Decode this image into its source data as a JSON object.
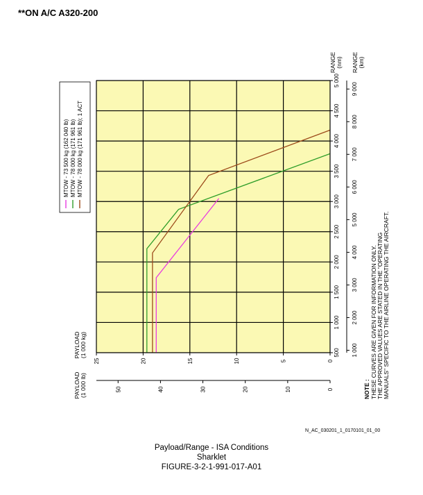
{
  "page": {
    "title": "**ON A/C A320-200",
    "doc_ref": "N_AC_030201_1_0170101_01_00",
    "caption_1": "Payload/Range - ISA Conditions",
    "caption_2": "Sharklet",
    "caption_3": "FIGURE-3-2-1-991-017-A01"
  },
  "chart_data": {
    "type": "line",
    "orientation": "rotated 90° counter-clockwise (range increases upward, payload increases leftward)",
    "plot_background": "#fbf9b4",
    "grid": true,
    "x_axis": {
      "label_nm": "RANGE",
      "unit_nm": "(nm)",
      "label_km": "RANGE",
      "unit_km": "(km)",
      "ylim_nm": [
        500,
        5000
      ],
      "ticks_nm": [
        "500",
        "1 000",
        "1 500",
        "2 000",
        "2 500",
        "3 000",
        "3 500",
        "4 000",
        "4 500",
        "5 000"
      ],
      "ticks_km": [
        "1 000",
        "2 000",
        "3 000",
        "4 000",
        "5 000",
        "6 000",
        "7 000",
        "8 000",
        "9 000"
      ]
    },
    "y_axis": {
      "label": "PAYLOAD",
      "unit_kg": "(1 000 kg)",
      "unit_lb": "(1 000 lb)",
      "range_kg": [
        0,
        25
      ],
      "ticks_kg": [
        "0",
        "5",
        "10",
        "15",
        "20",
        "25"
      ],
      "ticks_lb": [
        "0",
        "10",
        "20",
        "30",
        "40",
        "50"
      ]
    },
    "legend_placement": "top-left",
    "series": [
      {
        "name": "MTOW - 73 500 kg (162 040 lb)",
        "color": "#e83ae0",
        "points": [
          {
            "range_nm": 500,
            "payload_kg": 18.6
          },
          {
            "range_nm": 1740,
            "payload_kg": 18.6
          },
          {
            "range_nm": 3050,
            "payload_kg": 11.9
          }
        ]
      },
      {
        "name": "MTOW - 78 000 kg (171 961 lb)",
        "color": "#2f9e2a",
        "points": [
          {
            "range_nm": 500,
            "payload_kg": 19.6
          },
          {
            "range_nm": 2220,
            "payload_kg": 19.6
          },
          {
            "range_nm": 2870,
            "payload_kg": 16.2
          },
          {
            "range_nm": 3790,
            "payload_kg": 0
          }
        ]
      },
      {
        "name": "MTOW - 78 000 kg (171 961 lb); 1 ACT",
        "color": "#9c4a1a",
        "points": [
          {
            "range_nm": 500,
            "payload_kg": 19.0
          },
          {
            "range_nm": 2150,
            "payload_kg": 19.0
          },
          {
            "range_nm": 3430,
            "payload_kg": 13.0
          },
          {
            "range_nm": 4180,
            "payload_kg": 0
          }
        ]
      }
    ]
  },
  "note": {
    "title": "NOTE :",
    "line_1": "THESE CURVES ARE GIVEN FOR INFORMATION ONLY.",
    "line_2": "THE APPROVED VALUES ARE STATED IN THE \"OPERATING",
    "line_3": "MANUALS\" SPECIFIC TO THE AIRLINE OPERATING THE AIRCRAFT."
  }
}
